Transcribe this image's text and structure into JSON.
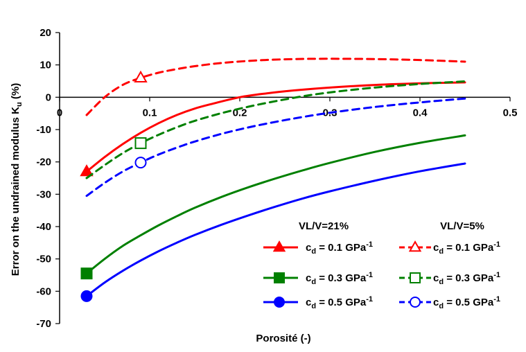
{
  "chart_data": {
    "type": "line",
    "title": "",
    "xlabel": "Porosité (-)",
    "ylabel_main": "Error on the undrained  modulus  K",
    "ylabel_sub": "u",
    "ylabel_tail": " (%)",
    "xlim": [
      0,
      0.5
    ],
    "ylim": [
      -70,
      20
    ],
    "x_ticks": [
      0,
      0.1,
      0.2,
      0.3,
      0.4,
      0.5
    ],
    "x_tick_labels": [
      "0",
      "0.1",
      "0.2",
      "0.3",
      "0.4",
      "0.5"
    ],
    "y_ticks": [
      20,
      10,
      0,
      -10,
      -20,
      -30,
      -40,
      -50,
      -60,
      -70
    ],
    "y_tick_labels": [
      "20",
      "10",
      "0",
      "-10",
      "-20",
      "-30",
      "-40",
      "-50",
      "-60",
      "-70"
    ],
    "grid": false,
    "legend_position": "bottom-right",
    "legend_headers": [
      "VL/V=21%",
      "VL/V=5%"
    ],
    "colors": {
      "red": "#ff0000",
      "green": "#008000",
      "blue": "#0000ff"
    },
    "series": [
      {
        "name": "c_d = 0.1 GPa^-1",
        "label_main": "c",
        "label_sub": "d",
        "label_mid": " = 0.1 GPa",
        "label_sup": "-1",
        "group": "VL/V=21%",
        "color": "#ff0000",
        "dash": false,
        "marker": "triangle",
        "marker_fill": true,
        "marker_x": 0.03,
        "x": [
          0.03,
          0.05,
          0.07,
          0.09,
          0.11,
          0.13,
          0.15,
          0.17,
          0.2,
          0.23,
          0.26,
          0.3,
          0.35,
          0.4,
          0.45
        ],
        "y": [
          -23,
          -18.5,
          -14.5,
          -11,
          -8,
          -5.5,
          -3.5,
          -2,
          0,
          1.2,
          2.1,
          3,
          3.8,
          4.3,
          4.6
        ]
      },
      {
        "name": "c_d = 0.1 GPa^-1",
        "label_main": "c",
        "label_sub": "d",
        "label_mid": " = 0.1 GPa",
        "label_sup": "-1",
        "group": "VL/V=5%",
        "color": "#ff0000",
        "dash": true,
        "marker": "triangle",
        "marker_fill": false,
        "marker_x": 0.09,
        "x": [
          0.03,
          0.05,
          0.07,
          0.09,
          0.11,
          0.13,
          0.15,
          0.18,
          0.22,
          0.26,
          0.3,
          0.35,
          0.4,
          0.45
        ],
        "y": [
          -5.5,
          0,
          3.8,
          6,
          7.6,
          8.7,
          9.6,
          10.6,
          11.4,
          11.8,
          11.9,
          11.8,
          11.5,
          11
        ]
      },
      {
        "name": "c_d = 0.3 GPa^-1",
        "label_main": "c",
        "label_sub": "d",
        "label_mid": " = 0.3 GPa",
        "label_sup": "-1",
        "group": "VL/V=21%",
        "color": "#008000",
        "dash": false,
        "marker": "square",
        "marker_fill": true,
        "marker_x": 0.03,
        "x": [
          0.03,
          0.05,
          0.07,
          0.09,
          0.11,
          0.13,
          0.15,
          0.18,
          0.21,
          0.24,
          0.27,
          0.3,
          0.35,
          0.4,
          0.45
        ],
        "y": [
          -54.5,
          -50,
          -46,
          -42.7,
          -39.6,
          -36.8,
          -34.2,
          -30.8,
          -27.8,
          -25.1,
          -22.6,
          -20.3,
          -16.9,
          -14.1,
          -11.8
        ]
      },
      {
        "name": "c_d = 0.3 GPa^-1",
        "label_main": "c",
        "label_sub": "d",
        "label_mid": " = 0.3 GPa",
        "label_sup": "-1",
        "group": "VL/V=5%",
        "color": "#008000",
        "dash": true,
        "marker": "square",
        "marker_fill": false,
        "marker_x": 0.09,
        "x": [
          0.03,
          0.05,
          0.07,
          0.09,
          0.11,
          0.13,
          0.15,
          0.18,
          0.21,
          0.24,
          0.27,
          0.3,
          0.35,
          0.4,
          0.45
        ],
        "y": [
          -25,
          -21,
          -17.3,
          -14.2,
          -11.6,
          -9.3,
          -7.3,
          -4.9,
          -2.9,
          -1.2,
          0.3,
          1.5,
          3,
          4.1,
          4.9
        ]
      },
      {
        "name": "c_d = 0.5 GPa^-1",
        "label_main": "c",
        "label_sub": "d",
        "label_mid": " = 0.5 GPa",
        "label_sup": "-1",
        "group": "VL/V=21%",
        "color": "#0000ff",
        "dash": false,
        "marker": "circle",
        "marker_fill": true,
        "marker_x": 0.03,
        "x": [
          0.03,
          0.05,
          0.07,
          0.09,
          0.11,
          0.13,
          0.15,
          0.18,
          0.21,
          0.24,
          0.27,
          0.3,
          0.35,
          0.4,
          0.45
        ],
        "y": [
          -61.5,
          -57.3,
          -53.7,
          -50.5,
          -47.6,
          -45,
          -42.6,
          -39.4,
          -36.5,
          -33.8,
          -31.3,
          -29.1,
          -25.8,
          -22.9,
          -20.5
        ]
      },
      {
        "name": "c_d = 0.5 GPa^-1",
        "label_main": "c",
        "label_sub": "d",
        "label_mid": " = 0.5 GPa",
        "label_sup": "-1",
        "group": "VL/V=5%",
        "color": "#0000ff",
        "dash": true,
        "marker": "circle",
        "marker_fill": false,
        "marker_x": 0.09,
        "x": [
          0.03,
          0.05,
          0.07,
          0.09,
          0.11,
          0.13,
          0.15,
          0.18,
          0.21,
          0.24,
          0.27,
          0.3,
          0.35,
          0.4,
          0.45
        ],
        "y": [
          -30.5,
          -26.5,
          -23,
          -20.2,
          -17.7,
          -15.6,
          -13.7,
          -11.3,
          -9.3,
          -7.6,
          -6.1,
          -4.8,
          -3,
          -1.6,
          -0.4
        ]
      }
    ]
  }
}
